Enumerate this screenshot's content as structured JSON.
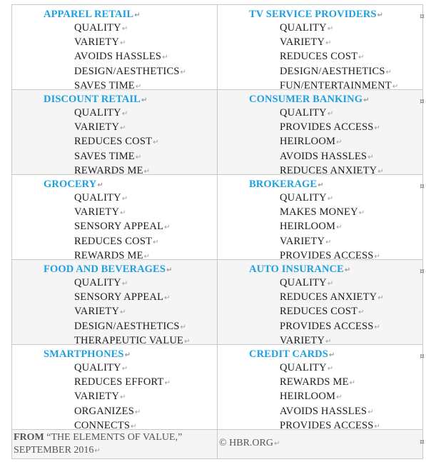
{
  "rows": [
    [
      {
        "category": "APPAREL RETAIL",
        "items": [
          "QUALITY",
          "VARIETY",
          "AVOIDS HASSLES",
          "DESIGN/AESTHETICS",
          "SAVES TIME"
        ]
      },
      {
        "category": "TV SERVICE PROVIDERS",
        "items": [
          "QUALITY",
          "VARIETY",
          "REDUCES COST",
          "DESIGN/AESTHETICS",
          "FUN/ENTERTAINMENT"
        ]
      }
    ],
    [
      {
        "category": "DISCOUNT RETAIL",
        "items": [
          "QUALITY",
          "VARIETY",
          "REDUCES COST",
          "SAVES TIME",
          "REWARDS ME"
        ]
      },
      {
        "category": "CONSUMER BANKING",
        "items": [
          "QUALITY",
          "PROVIDES ACCESS",
          "HEIRLOOM",
          "AVOIDS HASSLES",
          "REDUCES ANXIETY"
        ]
      }
    ],
    [
      {
        "category": "GROCERY",
        "items": [
          "QUALITY",
          "VARIETY",
          "SENSORY APPEAL",
          "REDUCES COST",
          "REWARDS ME"
        ]
      },
      {
        "category": "BROKERAGE",
        "items": [
          "QUALITY",
          "MAKES MONEY",
          "HEIRLOOM",
          "VARIETY",
          "PROVIDES ACCESS"
        ]
      }
    ],
    [
      {
        "category": "FOOD AND BEVERAGES",
        "items": [
          "QUALITY",
          "SENSORY APPEAL",
          "VARIETY",
          "DESIGN/AESTHETICS",
          "THERAPEUTIC VALUE"
        ]
      },
      {
        "category": "AUTO INSURANCE",
        "items": [
          "QUALITY",
          "REDUCES ANXIETY",
          "REDUCES COST",
          "PROVIDES ACCESS",
          "VARIETY"
        ]
      }
    ],
    [
      {
        "category": "SMARTPHONES",
        "items": [
          "QUALITY",
          "REDUCES EFFORT",
          "VARIETY",
          "ORGANIZES",
          "CONNECTS"
        ]
      },
      {
        "category": "CREDIT CARDS",
        "items": [
          "QUALITY",
          "REWARDS ME",
          "HEIRLOOM",
          "AVOIDS HASSLES",
          "PROVIDES ACCESS"
        ]
      }
    ]
  ],
  "footer": {
    "from_label": "FROM",
    "source_text": " “THE ELEMENTS OF VALUE,” SEPTEMBER 2016",
    "copyright": "© HBR.ORG"
  },
  "marks": {
    "paragraph": "↵",
    "row_end": "¤"
  },
  "colors": {
    "category": "#1e9fe0",
    "border": "#c8c8c8",
    "shaded": "#f5f5f5"
  }
}
